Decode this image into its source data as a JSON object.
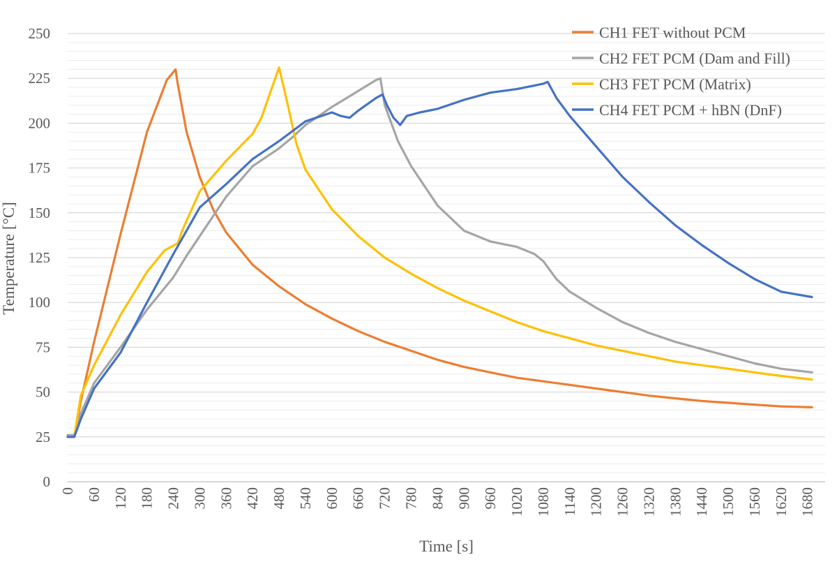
{
  "chart_data": {
    "type": "line",
    "title": "",
    "xlabel": "Time [s]",
    "ylabel": "Temperature [°C]",
    "xlim": [
      0,
      1720
    ],
    "ylim": [
      0,
      250
    ],
    "grid": true,
    "legend_position": "top-right",
    "x_ticks": [
      "0",
      "60",
      "120",
      "180",
      "240",
      "300",
      "360",
      "420",
      "480",
      "540",
      "600",
      "660",
      "720",
      "780",
      "840",
      "900",
      "960",
      "1020",
      "1080",
      "1140",
      "1200",
      "1260",
      "1320",
      "1380",
      "1440",
      "1500",
      "1560",
      "1620",
      "1680"
    ],
    "y_ticks": [
      "0",
      "25",
      "50",
      "75",
      "100",
      "125",
      "150",
      "175",
      "200",
      "225",
      "250"
    ],
    "series": [
      {
        "name": "CH1 FET without PCM",
        "color": "#ED7D31",
        "points": [
          [
            0,
            25
          ],
          [
            15,
            25
          ],
          [
            30,
            45
          ],
          [
            60,
            78
          ],
          [
            120,
            138
          ],
          [
            180,
            195
          ],
          [
            225,
            224
          ],
          [
            245,
            230
          ],
          [
            250,
            222
          ],
          [
            270,
            195
          ],
          [
            300,
            170
          ],
          [
            330,
            152
          ],
          [
            360,
            139
          ],
          [
            420,
            121
          ],
          [
            480,
            109
          ],
          [
            540,
            99
          ],
          [
            600,
            91
          ],
          [
            660,
            84
          ],
          [
            720,
            78
          ],
          [
            780,
            73
          ],
          [
            840,
            68
          ],
          [
            900,
            64
          ],
          [
            960,
            61
          ],
          [
            1020,
            58
          ],
          [
            1080,
            56
          ],
          [
            1140,
            54
          ],
          [
            1200,
            52
          ],
          [
            1260,
            50
          ],
          [
            1320,
            48
          ],
          [
            1380,
            46.5
          ],
          [
            1440,
            45
          ],
          [
            1500,
            44
          ],
          [
            1560,
            43
          ],
          [
            1620,
            42
          ],
          [
            1690,
            41.5
          ]
        ]
      },
      {
        "name": "CH2 FET PCM (Dam and Fill)",
        "color": "#A5A5A5",
        "points": [
          [
            0,
            26
          ],
          [
            15,
            26
          ],
          [
            30,
            38
          ],
          [
            60,
            55
          ],
          [
            120,
            75
          ],
          [
            180,
            96
          ],
          [
            240,
            114
          ],
          [
            270,
            126
          ],
          [
            300,
            137
          ],
          [
            360,
            159
          ],
          [
            420,
            176
          ],
          [
            480,
            186
          ],
          [
            510,
            192
          ],
          [
            540,
            199
          ],
          [
            600,
            209
          ],
          [
            660,
            218
          ],
          [
            700,
            224
          ],
          [
            710,
            225
          ],
          [
            720,
            210
          ],
          [
            750,
            190
          ],
          [
            780,
            176
          ],
          [
            840,
            154
          ],
          [
            900,
            140
          ],
          [
            960,
            134
          ],
          [
            1020,
            131
          ],
          [
            1060,
            127
          ],
          [
            1080,
            123
          ],
          [
            1110,
            113
          ],
          [
            1140,
            106
          ],
          [
            1200,
            97
          ],
          [
            1260,
            89
          ],
          [
            1320,
            83
          ],
          [
            1380,
            78
          ],
          [
            1440,
            74
          ],
          [
            1500,
            70
          ],
          [
            1560,
            66
          ],
          [
            1620,
            63
          ],
          [
            1690,
            61
          ]
        ]
      },
      {
        "name": "CH3 FET PCM (Matrix)",
        "color": "#FFC000",
        "points": [
          [
            0,
            25
          ],
          [
            15,
            25
          ],
          [
            30,
            48
          ],
          [
            60,
            65
          ],
          [
            120,
            93
          ],
          [
            180,
            117
          ],
          [
            220,
            129
          ],
          [
            250,
            133
          ],
          [
            260,
            140
          ],
          [
            300,
            162
          ],
          [
            360,
            179
          ],
          [
            420,
            194
          ],
          [
            440,
            203
          ],
          [
            460,
            217
          ],
          [
            480,
            231
          ],
          [
            500,
            210
          ],
          [
            520,
            188
          ],
          [
            540,
            174
          ],
          [
            600,
            152
          ],
          [
            660,
            137
          ],
          [
            720,
            125
          ],
          [
            780,
            116
          ],
          [
            840,
            108
          ],
          [
            900,
            101
          ],
          [
            960,
            95
          ],
          [
            1020,
            89
          ],
          [
            1080,
            84
          ],
          [
            1140,
            80
          ],
          [
            1200,
            76
          ],
          [
            1260,
            73
          ],
          [
            1320,
            70
          ],
          [
            1380,
            67
          ],
          [
            1440,
            65
          ],
          [
            1500,
            63
          ],
          [
            1560,
            61
          ],
          [
            1620,
            59
          ],
          [
            1690,
            57
          ]
        ]
      },
      {
        "name": "CH4 FET PCM + hBN (DnF)",
        "color": "#4472C4",
        "points": [
          [
            0,
            25
          ],
          [
            15,
            25
          ],
          [
            30,
            35
          ],
          [
            60,
            52
          ],
          [
            120,
            72
          ],
          [
            180,
            100
          ],
          [
            240,
            127
          ],
          [
            300,
            153
          ],
          [
            360,
            166
          ],
          [
            420,
            180
          ],
          [
            480,
            190
          ],
          [
            540,
            201
          ],
          [
            600,
            206
          ],
          [
            620,
            204
          ],
          [
            640,
            203
          ],
          [
            660,
            207
          ],
          [
            700,
            214
          ],
          [
            715,
            216
          ],
          [
            725,
            210
          ],
          [
            740,
            203
          ],
          [
            755,
            199
          ],
          [
            770,
            204
          ],
          [
            800,
            206
          ],
          [
            840,
            208
          ],
          [
            900,
            213
          ],
          [
            960,
            217
          ],
          [
            1020,
            219
          ],
          [
            1080,
            222
          ],
          [
            1090,
            223
          ],
          [
            1110,
            214
          ],
          [
            1140,
            204
          ],
          [
            1200,
            187
          ],
          [
            1260,
            170
          ],
          [
            1320,
            156
          ],
          [
            1380,
            143
          ],
          [
            1440,
            132
          ],
          [
            1500,
            122
          ],
          [
            1560,
            113
          ],
          [
            1620,
            106
          ],
          [
            1690,
            103
          ]
        ]
      }
    ]
  }
}
